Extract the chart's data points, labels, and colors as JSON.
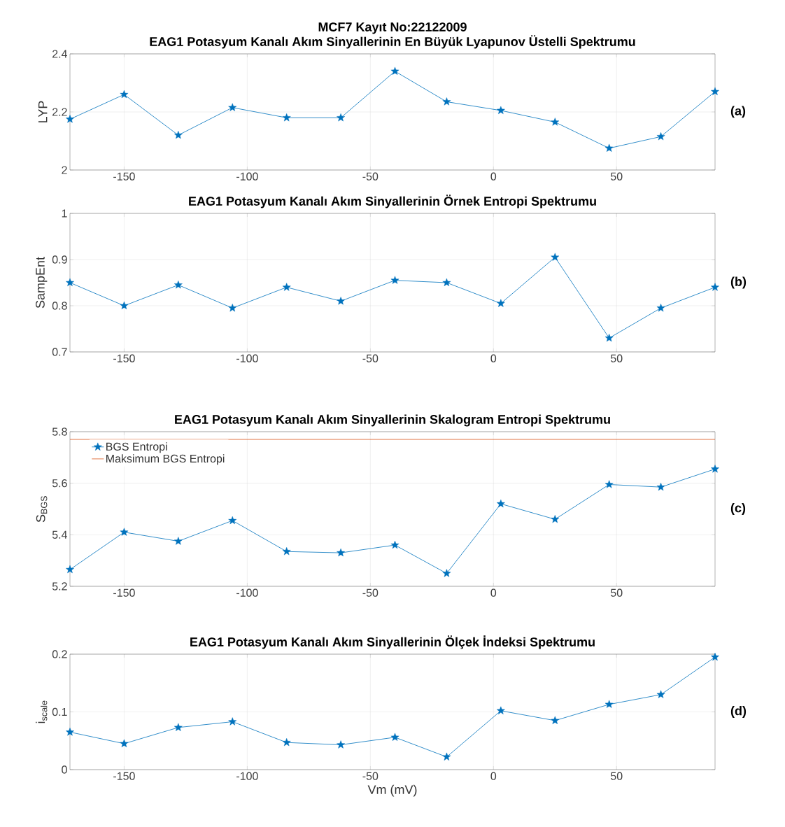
{
  "chart_data": [
    {
      "type": "line",
      "title": "MCF7 Kayıt No:22122009",
      "subtitle": "EAG1 Potasyum Kanalı Akım Sinyallerinin En Büyük Lyapunov Üstelli Spektrumu",
      "ylabel": "LYP",
      "annotations": [
        "(a)"
      ],
      "x": [
        -172,
        -150,
        -128,
        -106,
        -84,
        -62,
        -40,
        -19,
        3,
        25,
        47,
        68,
        90
      ],
      "series": [
        {
          "color": "#0072bd",
          "values": [
            2.175,
            2.26,
            2.12,
            2.215,
            2.18,
            2.18,
            2.34,
            2.235,
            2.205,
            2.165,
            2.075,
            2.115,
            2.27
          ]
        }
      ],
      "xlim": [
        -172,
        90
      ],
      "xticks": [
        -150,
        -100,
        -50,
        0,
        50
      ],
      "ylim": [
        2,
        2.4
      ],
      "yticks": [
        2,
        2.2,
        2.4
      ],
      "grid": true,
      "marker": "star"
    },
    {
      "type": "line",
      "title": "EAG1 Potasyum Kanalı Akım Sinyallerinin Örnek Entropi Spektrumu",
      "ylabel": "SampEnt",
      "annotations": [
        "(b)"
      ],
      "x": [
        -172,
        -150,
        -128,
        -106,
        -84,
        -62,
        -40,
        -19,
        3,
        25,
        47,
        68,
        90
      ],
      "series": [
        {
          "color": "#0072bd",
          "values": [
            0.85,
            0.8,
            0.845,
            0.795,
            0.84,
            0.81,
            0.855,
            0.85,
            0.805,
            0.905,
            0.73,
            0.795,
            0.84
          ]
        }
      ],
      "xlim": [
        -172,
        90
      ],
      "xticks": [
        -150,
        -100,
        -50,
        0,
        50
      ],
      "ylim": [
        0.7,
        1
      ],
      "yticks": [
        0.7,
        0.8,
        0.9,
        1
      ],
      "grid": true,
      "marker": "star"
    },
    {
      "type": "line",
      "title": "EAG1 Potasyum Kanalı Akım Sinyallerinin Skalogram Entropi Spektrumu",
      "ylabel": "S$_{BGS}$",
      "annotations": [
        "(c)"
      ],
      "x": [
        -172,
        -150,
        -128,
        -106,
        -84,
        -62,
        -40,
        -19,
        3,
        25,
        47,
        68,
        90
      ],
      "series": [
        {
          "name": "BGS Entropi",
          "color": "#0072bd",
          "values": [
            5.265,
            5.41,
            5.375,
            5.455,
            5.335,
            5.33,
            5.36,
            5.25,
            5.52,
            5.46,
            5.595,
            5.585,
            5.655
          ]
        },
        {
          "name": "Maksimum BGS Entropi",
          "color": "#d95319",
          "x": [
            -172,
            90
          ],
          "values": [
            5.77,
            5.77
          ],
          "marker": "none"
        }
      ],
      "xlim": [
        -172,
        90
      ],
      "xticks": [
        -150,
        -100,
        -50,
        0,
        50
      ],
      "ylim": [
        5.2,
        5.8
      ],
      "yticks": [
        5.2,
        5.4,
        5.6,
        5.8
      ],
      "grid": true,
      "marker": "star",
      "legend": "top left"
    },
    {
      "type": "line",
      "title": "EAG1 Potasyum Kanalı Akım Sinyallerinin Ölçek İndeksi Spektrumu",
      "xlabel": "Vm (mV)",
      "ylabel": "i$_{scale}$",
      "annotations": [
        "(d)"
      ],
      "x": [
        -172,
        -150,
        -128,
        -106,
        -84,
        -62,
        -40,
        -19,
        3,
        25,
        47,
        68,
        90
      ],
      "series": [
        {
          "color": "#0072bd",
          "values": [
            0.065,
            0.045,
            0.073,
            0.083,
            0.047,
            0.043,
            0.056,
            0.022,
            0.102,
            0.085,
            0.113,
            0.13,
            0.195
          ]
        }
      ],
      "xlim": [
        -172,
        90
      ],
      "xticks": [
        -150,
        -100,
        -50,
        0,
        50
      ],
      "ylim": [
        0,
        0.2
      ],
      "yticks": [
        0,
        0.1,
        0.2
      ],
      "grid": true,
      "marker": "star"
    }
  ]
}
